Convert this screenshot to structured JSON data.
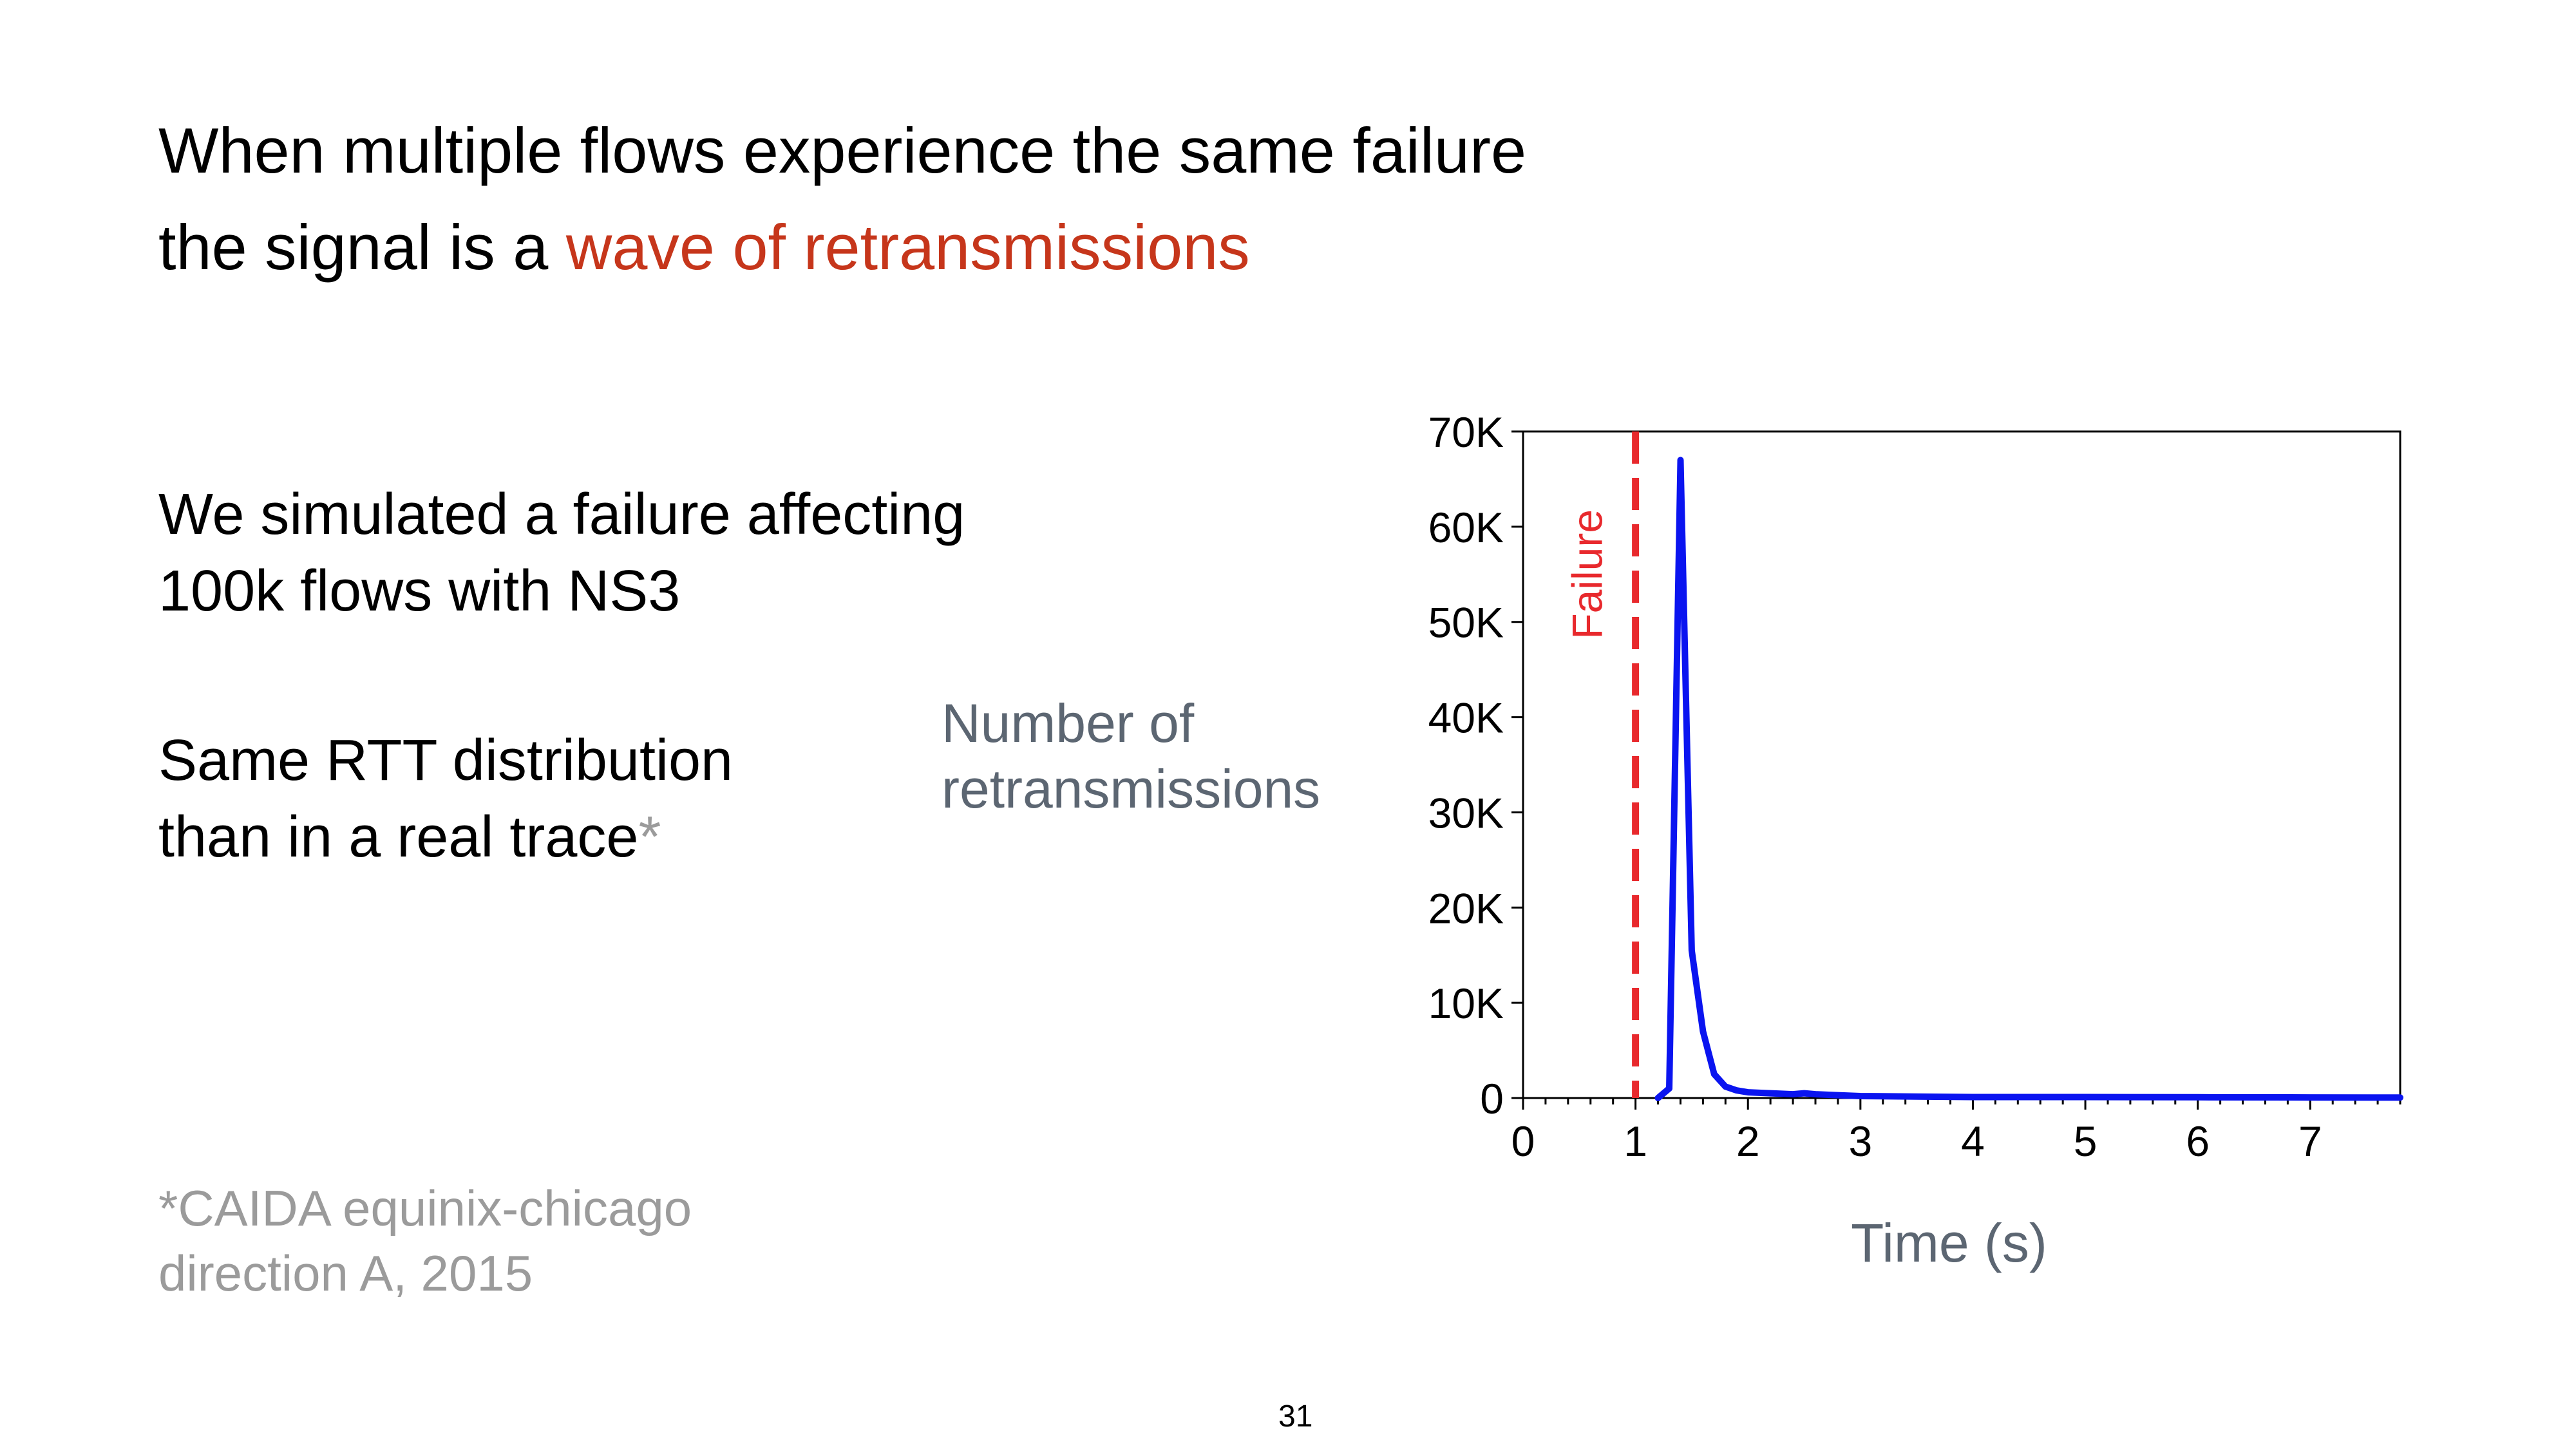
{
  "slide": {
    "title_line1": "When multiple flows experience the same failure",
    "title_line2_prefix": "the signal is a ",
    "title_line2_highlight": "wave of retransmissions",
    "body1_line1": "We simulated a failure affecting",
    "body1_line2": "100k flows with NS3",
    "body2_line1": "Same RTT distribution",
    "body2_line2": "than in a real trace",
    "body2_asterisk": "*",
    "footnote_line1": "*CAIDA equinix-chicago",
    "footnote_line2": "direction A, 2015",
    "page_number": "31",
    "colors": {
      "highlight": "#c6361b",
      "series": "#0a14f0",
      "failure_marker": "#e8292d",
      "muted_text": "#9b9b9b",
      "axis_label": "#5c6672"
    }
  },
  "chart_data": {
    "type": "line",
    "ylabel_line1": "Number of",
    "ylabel_line2": "retransmissions",
    "xlabel": "Time (s)",
    "xlim": [
      0,
      7.8
    ],
    "ylim": [
      0,
      70000
    ],
    "x_ticks": [
      0,
      1,
      2,
      3,
      4,
      5,
      6,
      7
    ],
    "x_tick_labels": [
      "0",
      "1",
      "2",
      "3",
      "4",
      "5",
      "6",
      "7"
    ],
    "y_ticks": [
      0,
      10000,
      20000,
      30000,
      40000,
      50000,
      60000,
      70000
    ],
    "y_tick_labels": [
      "0",
      "10K",
      "20K",
      "30K",
      "40K",
      "50K",
      "60K",
      "70K"
    ],
    "grid": false,
    "annotation": {
      "label": "Failure",
      "x": 1.0,
      "style": "dashed vertical line"
    },
    "series": [
      {
        "x": [
          1.2,
          1.3,
          1.4,
          1.5,
          1.6,
          1.7,
          1.8,
          1.9,
          2.0,
          2.2,
          2.4,
          2.5,
          2.6,
          2.8,
          3.0,
          3.5,
          4.0,
          5.0,
          6.0,
          7.0,
          7.8
        ],
        "y": [
          0,
          1000,
          67000,
          15500,
          7000,
          2500,
          1200,
          800,
          600,
          500,
          400,
          500,
          400,
          300,
          200,
          150,
          100,
          100,
          80,
          60,
          50
        ]
      }
    ]
  }
}
